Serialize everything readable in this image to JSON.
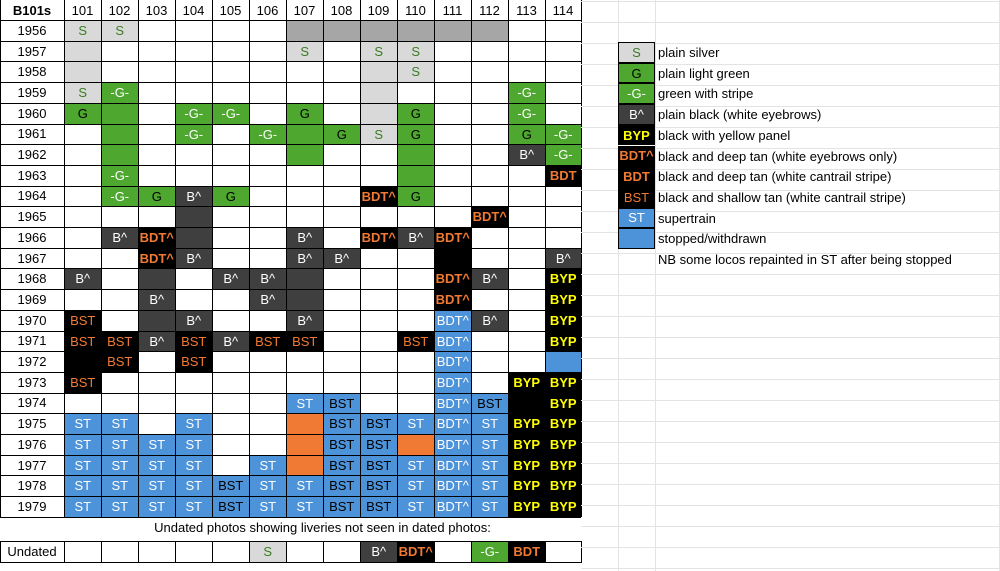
{
  "table_title": "B101s",
  "columns": [
    "101",
    "102",
    "103",
    "104",
    "105",
    "106",
    "107",
    "108",
    "109",
    "110",
    "111",
    "112",
    "113",
    "114"
  ],
  "rows": [
    {
      "year": "1956",
      "cells": [
        "S",
        "S",
        "",
        "",
        "",
        "",
        "~g",
        "~g",
        "~g",
        "~g",
        "~g",
        "~g",
        "",
        ""
      ]
    },
    {
      "year": "1957",
      "cells": [
        "~s",
        "",
        "",
        "",
        "",
        "",
        "S",
        "",
        "S",
        "S",
        "",
        "",
        "",
        ""
      ]
    },
    {
      "year": "1958",
      "cells": [
        "~s",
        "",
        "",
        "",
        "",
        "",
        "",
        "",
        "~s",
        "S",
        "",
        "",
        "",
        ""
      ]
    },
    {
      "year": "1959",
      "cells": [
        "S",
        "-G-",
        "",
        "",
        "",
        "",
        "",
        "",
        "~s",
        "",
        "",
        "",
        "-G-",
        ""
      ]
    },
    {
      "year": "1960",
      "cells": [
        "G",
        "~G",
        "",
        "-G-",
        "-G-",
        "",
        "G",
        "",
        "~s",
        "G",
        "",
        "",
        "-G-",
        ""
      ]
    },
    {
      "year": "1961",
      "cells": [
        "",
        "~G",
        "",
        "-G-",
        "",
        "-G-",
        "~G",
        "G",
        "S",
        "G",
        "",
        "",
        "G",
        "-G-"
      ]
    },
    {
      "year": "1962",
      "cells": [
        "",
        "~G",
        "",
        "",
        "",
        "",
        "~G",
        "",
        "",
        "~G",
        "",
        "",
        "B^",
        "-G-"
      ]
    },
    {
      "year": "1963",
      "cells": [
        "",
        "-G-",
        "",
        "",
        "",
        "",
        "",
        "",
        "",
        "~G",
        "",
        "",
        "",
        "BDT"
      ]
    },
    {
      "year": "1964",
      "cells": [
        "",
        "-G-",
        "G",
        "B^",
        "G",
        "",
        "",
        "",
        "BDT^",
        "G",
        "",
        "",
        "",
        ""
      ]
    },
    {
      "year": "1965",
      "cells": [
        "",
        "",
        "",
        "~B",
        "",
        "",
        "",
        "",
        "",
        "",
        "",
        "BDT^",
        "",
        ""
      ]
    },
    {
      "year": "1966",
      "cells": [
        "",
        "B^",
        "BDT^",
        "~B",
        "",
        "",
        "B^",
        "",
        "BDT^",
        "B^",
        "BDT^",
        "",
        "",
        ""
      ]
    },
    {
      "year": "1967",
      "cells": [
        "",
        "",
        "BDT^",
        "B^",
        "",
        "",
        "B^",
        "B^",
        "",
        "",
        "~K",
        "",
        "",
        "B^"
      ]
    },
    {
      "year": "1968",
      "cells": [
        "B^",
        "",
        "~B",
        "",
        "B^",
        "B^",
        "~B",
        "",
        "",
        "",
        "BDT^",
        "B^",
        "",
        "BYP"
      ]
    },
    {
      "year": "1969",
      "cells": [
        "",
        "",
        "B^",
        "",
        "",
        "B^",
        "~B",
        "",
        "",
        "",
        "BDT^",
        "",
        "",
        "BYP"
      ]
    },
    {
      "year": "1970",
      "cells": [
        "BST",
        "",
        "~B",
        "B^",
        "",
        "",
        "B^",
        "",
        "",
        "",
        "BDT^",
        "B^",
        "",
        "BYP"
      ]
    },
    {
      "year": "1971",
      "cells": [
        "BST",
        "BST",
        "B^",
        "BST",
        "B^",
        "BST",
        "BST",
        "",
        "",
        "BST",
        "BDT^",
        "",
        "",
        "BYP"
      ]
    },
    {
      "year": "1972",
      "cells": [
        "~K",
        "BST",
        "",
        "BST",
        "",
        "",
        "",
        "",
        "",
        "",
        "BDT^",
        "",
        "",
        "~W"
      ]
    },
    {
      "year": "1973",
      "cells": [
        "BST",
        "",
        "",
        "",
        "",
        "",
        "",
        "",
        "",
        "",
        "BDT^",
        "",
        "BYP",
        "BYP"
      ]
    },
    {
      "year": "1974",
      "cells": [
        "",
        "",
        "",
        "",
        "",
        "",
        "ST",
        "BST",
        "",
        "",
        "BDT^",
        "BST",
        "~K",
        "BYP"
      ]
    },
    {
      "year": "1975",
      "cells": [
        "ST",
        "ST",
        "",
        "ST",
        "",
        "",
        "~O",
        "BST",
        "BST",
        "ST",
        "BDT^",
        "ST",
        "BYP",
        "BYP"
      ]
    },
    {
      "year": "1976",
      "cells": [
        "ST",
        "ST",
        "ST",
        "ST",
        "",
        "",
        "~O",
        "BST",
        "BST",
        "~O",
        "BDT^",
        "ST",
        "BYP",
        "BYP"
      ]
    },
    {
      "year": "1977",
      "cells": [
        "ST",
        "ST",
        "ST",
        "ST",
        "",
        "ST",
        "~O",
        "BST",
        "BST",
        "ST",
        "BDT^",
        "ST",
        "BYP",
        "BYP"
      ]
    },
    {
      "year": "1978",
      "cells": [
        "ST",
        "ST",
        "ST",
        "ST",
        "BST",
        "ST",
        "ST",
        "BST",
        "BST",
        "ST",
        "BDT^",
        "ST",
        "BYP",
        "BYP"
      ]
    },
    {
      "year": "1979",
      "cells": [
        "ST",
        "ST",
        "ST",
        "ST",
        "BST",
        "ST",
        "ST",
        "BST",
        "BST",
        "ST",
        "BDT^",
        "ST",
        "BYP",
        "BYP"
      ]
    }
  ],
  "undated_note": "Undated photos showing liveries not seen in dated photos:",
  "undated_row": {
    "label": "Undated",
    "cells": [
      "",
      "",
      "",
      "",
      "",
      "S",
      "",
      "",
      "B^",
      "BDT^",
      "",
      "-G-",
      "BDT",
      ""
    ]
  },
  "legend": [
    {
      "code": "S",
      "label": "plain silver"
    },
    {
      "code": "G",
      "label": "plain light green"
    },
    {
      "code": "-G-",
      "label": "green with stripe"
    },
    {
      "code": "B^",
      "label": "plain black (white eyebrows)"
    },
    {
      "code": "BYP",
      "label": "black with yellow panel"
    },
    {
      "code": "BDT^",
      "label": "black and deep tan (white eyebrows only)"
    },
    {
      "code": "BDT",
      "label": "black and deep tan (white cantrail stripe)"
    },
    {
      "code": "BST",
      "label": "black and shallow tan (white cantrail stripe)"
    },
    {
      "code": "ST",
      "label": "supertrain"
    },
    {
      "code": "",
      "label": "stopped/withdrawn"
    },
    {
      "code": "",
      "label": "NB some locos repainted in ST after being stopped"
    }
  ],
  "colors": {
    "silver": "#d9d9d9",
    "header_grey": "#a6a6a6",
    "green": "#4ea72e",
    "green_text": "#ffffff",
    "silver_text": "#3a7d22",
    "black_panel": "#3f3f3f",
    "black_full": "#000000",
    "tan": "#f07a33",
    "yellow": "#ffff00",
    "blue": "#4d93d9",
    "gridline": "#e3e3e3"
  }
}
